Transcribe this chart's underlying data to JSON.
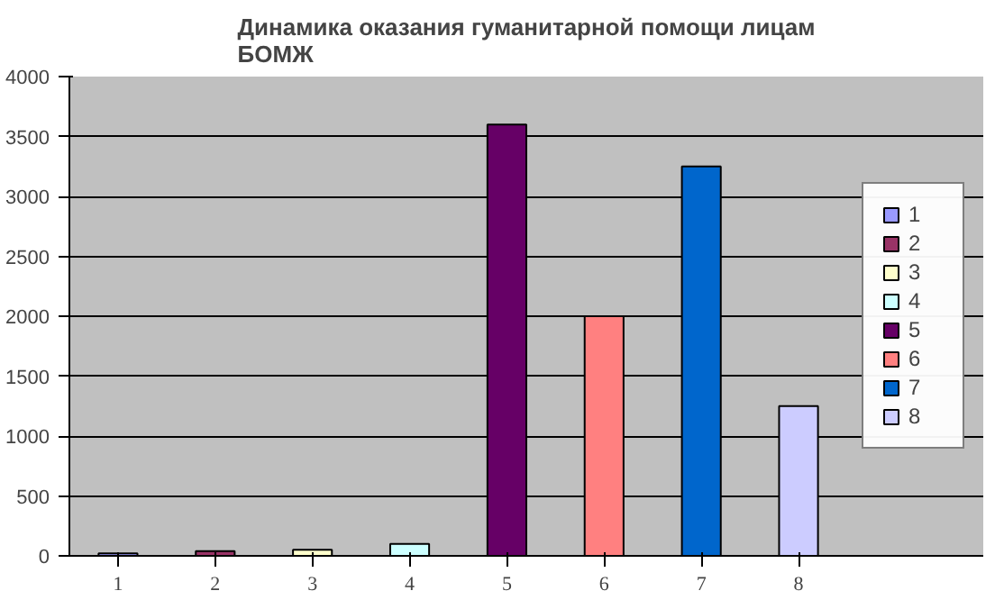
{
  "chart_data": {
    "type": "bar",
    "title": "Динамика оказания гуманитарной помощи лицам\nБОМЖ",
    "categories": [
      "1",
      "2",
      "3",
      "4",
      "5",
      "6",
      "7",
      "8"
    ],
    "series": [
      {
        "name": "1",
        "color": "#9999ff",
        "values": [
          20,
          null,
          null,
          null,
          null,
          null,
          null,
          null
        ]
      },
      {
        "name": "2",
        "color": "#993366",
        "values": [
          null,
          40,
          null,
          null,
          null,
          null,
          null,
          null
        ]
      },
      {
        "name": "3",
        "color": "#ffffcc",
        "values": [
          null,
          null,
          50,
          null,
          null,
          null,
          null,
          null
        ]
      },
      {
        "name": "4",
        "color": "#ccffff",
        "values": [
          null,
          null,
          null,
          100,
          null,
          null,
          null,
          null
        ]
      },
      {
        "name": "5",
        "color": "#660066",
        "values": [
          null,
          null,
          null,
          null,
          3600,
          null,
          null,
          null
        ]
      },
      {
        "name": "6",
        "color": "#ff8080",
        "values": [
          null,
          null,
          null,
          null,
          null,
          2000,
          null,
          null
        ]
      },
      {
        "name": "7",
        "color": "#0066cc",
        "values": [
          null,
          null,
          null,
          null,
          null,
          null,
          3250,
          null
        ]
      },
      {
        "name": "8",
        "color": "#ccccff",
        "values": [
          null,
          null,
          null,
          null,
          null,
          null,
          null,
          1250
        ]
      }
    ],
    "ylim": [
      0,
      4000
    ],
    "yticks": [
      0,
      500,
      1000,
      1500,
      2000,
      2500,
      3000,
      3500,
      4000
    ],
    "grid": "y",
    "legend": "right"
  }
}
